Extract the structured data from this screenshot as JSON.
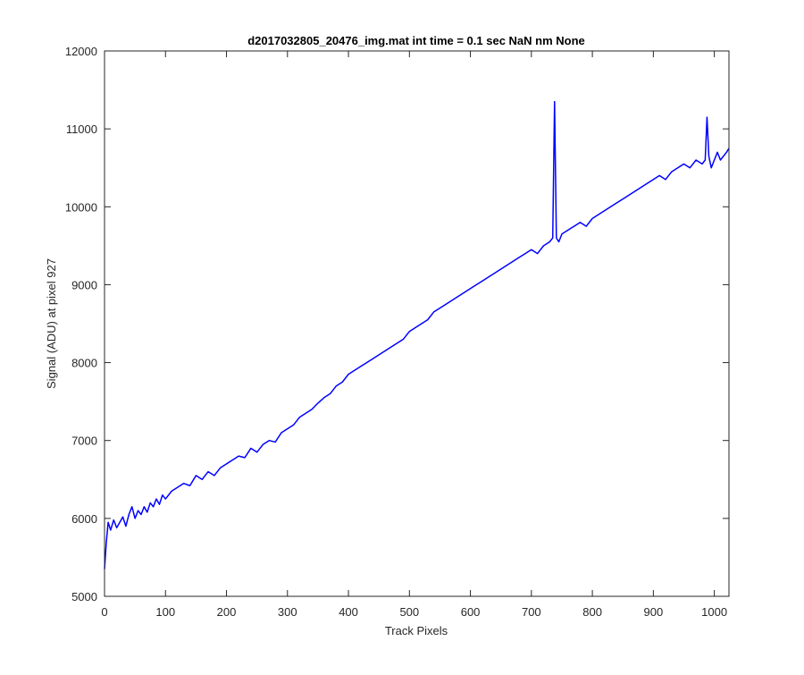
{
  "chart_data": {
    "type": "line",
    "title": "d2017032805_20476_img.mat int time = 0.1 sec  NaN nm None",
    "xlabel": "Track Pixels",
    "ylabel": "Signal (ADU) at pixel 927",
    "xlim": [
      0,
      1024
    ],
    "ylim": [
      5000,
      12000
    ],
    "xticks": [
      0,
      100,
      200,
      300,
      400,
      500,
      600,
      700,
      800,
      900,
      1000
    ],
    "yticks": [
      5000,
      6000,
      7000,
      8000,
      9000,
      10000,
      11000,
      12000
    ],
    "grid": false,
    "legend": "none",
    "series": [
      {
        "color": "#0000ff",
        "x": [
          0,
          3,
          6,
          10,
          15,
          20,
          25,
          30,
          35,
          40,
          45,
          50,
          55,
          60,
          65,
          70,
          75,
          80,
          85,
          90,
          95,
          100,
          110,
          120,
          130,
          140,
          150,
          160,
          170,
          180,
          190,
          200,
          210,
          220,
          230,
          240,
          250,
          260,
          270,
          280,
          290,
          300,
          310,
          320,
          330,
          340,
          350,
          360,
          370,
          380,
          390,
          400,
          410,
          420,
          430,
          440,
          450,
          460,
          470,
          480,
          490,
          500,
          510,
          520,
          530,
          540,
          550,
          560,
          570,
          580,
          590,
          600,
          610,
          620,
          630,
          640,
          650,
          660,
          670,
          680,
          690,
          700,
          710,
          720,
          730,
          735,
          738,
          741,
          745,
          750,
          760,
          770,
          780,
          790,
          800,
          810,
          820,
          830,
          840,
          850,
          860,
          870,
          880,
          890,
          900,
          910,
          920,
          930,
          940,
          950,
          960,
          970,
          980,
          985,
          988,
          991,
          995,
          1000,
          1005,
          1010,
          1015,
          1020,
          1024
        ],
        "values": [
          5350,
          5700,
          5950,
          5850,
          5980,
          5880,
          5950,
          6020,
          5900,
          6050,
          6150,
          6000,
          6100,
          6050,
          6150,
          6080,
          6200,
          6150,
          6250,
          6180,
          6300,
          6250,
          6350,
          6400,
          6450,
          6420,
          6550,
          6500,
          6600,
          6550,
          6650,
          6700,
          6750,
          6800,
          6780,
          6900,
          6850,
          6950,
          7000,
          6980,
          7100,
          7150,
          7200,
          7300,
          7350,
          7400,
          7480,
          7550,
          7600,
          7700,
          7750,
          7850,
          7900,
          7950,
          8000,
          8050,
          8100,
          8150,
          8200,
          8250,
          8300,
          8400,
          8450,
          8500,
          8550,
          8650,
          8700,
          8750,
          8800,
          8850,
          8900,
          8950,
          9000,
          9050,
          9100,
          9150,
          9200,
          9250,
          9300,
          9350,
          9400,
          9450,
          9400,
          9500,
          9550,
          9600,
          11350,
          9600,
          9550,
          9650,
          9700,
          9750,
          9800,
          9750,
          9850,
          9900,
          9950,
          10000,
          10050,
          10100,
          10150,
          10200,
          10250,
          10300,
          10350,
          10400,
          10350,
          10450,
          10500,
          10550,
          10500,
          10600,
          10550,
          10600,
          11150,
          10650,
          10500,
          10600,
          10700,
          10600,
          10650,
          10700,
          10750
        ]
      }
    ]
  }
}
